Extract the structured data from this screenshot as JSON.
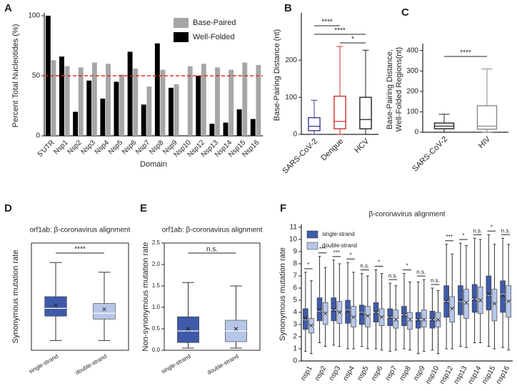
{
  "chart_data": [
    {
      "panel": "A",
      "type": "bar",
      "ylabel": "Percent Total Nucleotides (%)",
      "xlabel": "Domain",
      "categories": [
        "5'UTR",
        "Nsp1",
        "Nsp2",
        "Nsp3",
        "Nsp4",
        "Nsp5",
        "Nsp6",
        "Nsp7",
        "Nsp8",
        "Nsp9",
        "Nsp10",
        "Nsp12",
        "Nsp13",
        "Nsp14",
        "Nsp15",
        "Nsp16"
      ],
      "series": [
        {
          "name": "Base-Paired",
          "color": "#a6a6a6",
          "values": [
            63,
            58,
            57,
            61,
            60,
            51,
            56,
            41,
            55,
            43,
            58,
            60,
            57,
            55,
            61,
            59
          ]
        },
        {
          "name": "Well-Folded",
          "color": "#000000",
          "values": [
            100,
            66,
            20,
            46,
            31,
            45,
            70,
            26,
            77,
            40,
            0,
            50,
            10,
            11,
            22,
            14
          ]
        }
      ],
      "reference_line": {
        "value": 50,
        "color": "#d9321f"
      },
      "ylim": [
        0,
        100
      ],
      "yticks": [
        0,
        50,
        100
      ],
      "legend": "top-right"
    },
    {
      "panel": "B",
      "type": "box",
      "ylabel": "Base-Pairing Distance (nt)",
      "box_fill": false,
      "categories": [
        "SARS-CoV-2",
        "Dengue",
        "HCV"
      ],
      "colors": [
        "#3b3b9a",
        "#c8332e",
        "#222222"
      ],
      "series": [
        {
          "min": [
            0,
            0,
            0
          ],
          "q1": [
            10,
            15,
            15
          ],
          "median": [
            22,
            35,
            40
          ],
          "q3": [
            45,
            103,
            100
          ],
          "max": [
            92,
            237,
            227
          ]
        }
      ],
      "annotations": [
        {
          "text": "****",
          "between": [
            "SARS-CoV-2",
            "Dengue"
          ]
        },
        {
          "text": "****",
          "between": [
            "SARS-CoV-2",
            "HCV"
          ]
        },
        {
          "text": "*",
          "between": [
            "Dengue",
            "HCV"
          ]
        }
      ],
      "ylim": [
        0,
        320
      ],
      "yticks": [
        0,
        100,
        200
      ]
    },
    {
      "panel": "C",
      "type": "box",
      "ylabel": [
        "Base-Pairing Distance,",
        "Well-Folded Regions(nt)"
      ],
      "box_fill": false,
      "categories": [
        "SARS-CoV-2",
        "HIV"
      ],
      "colors": [
        "#222222",
        "#888888"
      ],
      "series": [
        {
          "min": [
            0,
            0
          ],
          "q1": [
            17,
            15
          ],
          "median": [
            30,
            30
          ],
          "q3": [
            45,
            130
          ],
          "max": [
            88,
            310
          ]
        }
      ],
      "annotations": [
        {
          "text": "****",
          "between": [
            "SARS-CoV-2",
            "HIV"
          ]
        }
      ],
      "ylim": [
        0,
        420
      ],
      "yticks": [
        0,
        100,
        200,
        300,
        400
      ]
    },
    {
      "panel": "D",
      "type": "box",
      "title": "orf1ab: β-coronavirus alignment",
      "ylabel": "Synonymous mutation rate",
      "box_fill": true,
      "categories": [
        "single-strand",
        "double-strand"
      ],
      "colors": [
        "#3f5aa8",
        "#b6c6e8"
      ],
      "series": [
        {
          "min": [
            1,
            1
          ],
          "q1": [
            3.5,
            3.2
          ],
          "median": [
            4.3,
            3.8
          ],
          "q3": [
            5.5,
            4.8
          ],
          "max": [
            9,
            8
          ],
          "mean": [
            4.6,
            4.2
          ]
        }
      ],
      "annotations": [
        {
          "text": "****",
          "between": [
            "single-strand",
            "double-strand"
          ]
        }
      ],
      "ylim": [
        0,
        11
      ]
    },
    {
      "panel": "E",
      "type": "box",
      "title": "orf1ab: β-coronavirus alignment",
      "ylabel": "Non-synonymous mutation rate",
      "box_fill": true,
      "categories": [
        "single-strand",
        "double-strand"
      ],
      "colors": [
        "#3f5aa8",
        "#b6c6e8"
      ],
      "series": [
        {
          "min": [
            0.05,
            0.05
          ],
          "q1": [
            0.18,
            0.2
          ],
          "median": [
            0.45,
            0.45
          ],
          "q3": [
            0.78,
            0.7
          ],
          "max": [
            1.58,
            1.5
          ],
          "mean": [
            0.5,
            0.5
          ]
        }
      ],
      "annotations": [
        {
          "text": "n.s.",
          "between": [
            "single-strand",
            "double-strand"
          ]
        }
      ],
      "ylim": [
        0,
        2.5
      ],
      "yticks": [
        {
          "value": 0,
          "label": "0.0"
        },
        0.5,
        {
          "value": 1,
          "label": "1.0"
        },
        1.5,
        {
          "value": 2,
          "label": "2.0"
        },
        2.5
      ]
    },
    {
      "panel": "F",
      "type": "box",
      "title": "β-coronavirus alignment",
      "ylabel": "Synonymous mutation rate",
      "box_fill": true,
      "categories": [
        "nsp1",
        "nsp2",
        "nsp3",
        "nsp4",
        "nsp5",
        "nsp6",
        "nsp7",
        "nsp8",
        "nsp9",
        "nsp10",
        "nsp12",
        "nsp13",
        "nsp14",
        "nsp15",
        "nsp16"
      ],
      "series": [
        {
          "name": "single-strand",
          "color": "#3f5aa8",
          "min": [
            0.8,
            1.5,
            1.3,
            1,
            1.2,
            1,
            0.8,
            1,
            0.6,
            0.9,
            1,
            1.2,
            1.5,
            1.2,
            1.1
          ],
          "q1": [
            2.6,
            3.3,
            3.3,
            3.1,
            3,
            3.2,
            2.9,
            2.9,
            2.7,
            2.7,
            3.6,
            3.8,
            4,
            4.2,
            4
          ],
          "median": [
            3.4,
            4.1,
            4.2,
            4.2,
            4,
            4,
            3.6,
            3.8,
            3.4,
            3.4,
            4.9,
            4.9,
            5.1,
            5.4,
            5.5
          ],
          "q3": [
            4.3,
            5.2,
            5.2,
            5,
            4.6,
            4.8,
            4.3,
            4.5,
            4,
            4.1,
            6.2,
            6.2,
            6.3,
            7,
            6.6
          ],
          "max": [
            7.3,
            8.6,
            8.3,
            8.1,
            7.2,
            7.5,
            6.4,
            7.2,
            6.5,
            6,
            9.6,
            9.7,
            10.1,
            10.4,
            10.1
          ],
          "mean": [
            3.5,
            4.2,
            4.2,
            4.1,
            3.9,
            4,
            3.6,
            3.8,
            3.4,
            3.4,
            4.9,
            5,
            5.1,
            5.5,
            5.4
          ]
        },
        {
          "name": "double-strand",
          "color": "#b6c6e8",
          "min": [
            0.6,
            1.2,
            1.2,
            1,
            1,
            0.9,
            0.9,
            0.9,
            0.8,
            0.6,
            1,
            1.1,
            1.5,
            1,
            0.9
          ],
          "q1": [
            2.3,
            3,
            3.1,
            2.8,
            2.8,
            2.9,
            2.7,
            2.6,
            2.8,
            2.8,
            3.2,
            3.5,
            3.9,
            3.3,
            3.6
          ],
          "median": [
            2.8,
            3.8,
            3.9,
            3.5,
            3.6,
            3.5,
            3.4,
            3.4,
            3.4,
            3.5,
            4.2,
            4.8,
            5,
            4.6,
            4.8
          ],
          "q3": [
            3.5,
            4.8,
            4.9,
            4.5,
            4.5,
            4.3,
            4.2,
            4,
            4.2,
            4,
            5.3,
            5.9,
            6.1,
            5.9,
            6.2
          ],
          "max": [
            6.6,
            7.7,
            8,
            7.3,
            7,
            7.2,
            6.2,
            6.5,
            6.7,
            5.8,
            8.8,
            9.5,
            10,
            9.6,
            9.6
          ],
          "mean": [
            2.9,
            3.9,
            4,
            3.6,
            3.7,
            3.6,
            3.4,
            3.4,
            3.4,
            3.4,
            4.3,
            4.8,
            5,
            4.7,
            4.9
          ]
        }
      ],
      "significance": [
        "*",
        "***",
        "***",
        "*",
        "n.s.",
        "*",
        "n.s.",
        "*",
        "n.s.",
        "n.s.",
        "***",
        "*",
        "n.s.",
        "*",
        "n.s."
      ],
      "ylim": [
        0,
        11
      ],
      "yticks": [
        0,
        1,
        2,
        3,
        4,
        5,
        6,
        7,
        8,
        9,
        10,
        11
      ],
      "legend": "top-left"
    }
  ]
}
